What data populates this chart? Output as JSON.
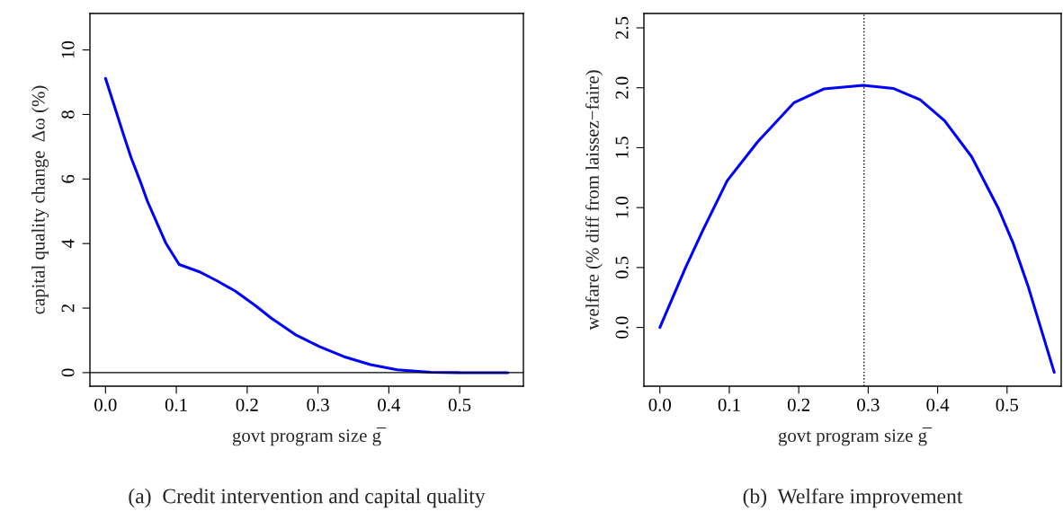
{
  "chart_data": [
    {
      "type": "line",
      "title": "(a)  Credit intervention and capital quality",
      "xlabel": "govt program size g̅",
      "ylabel": "capital quality change  Δω (%)",
      "x": [
        0,
        0.0127,
        0.0255,
        0.036,
        0.049,
        0.059,
        0.072,
        0.085,
        0.104,
        0.132,
        0.157,
        0.183,
        0.212,
        0.234,
        0.268,
        0.302,
        0.336,
        0.374,
        0.412,
        0.459,
        0.501,
        0.568
      ],
      "series": [
        {
          "color": "#0000ff",
          "values": [
            9.12,
            8.25,
            7.37,
            6.67,
            5.93,
            5.32,
            4.67,
            4.02,
            3.35,
            3.13,
            2.85,
            2.53,
            2.07,
            1.69,
            1.18,
            0.81,
            0.5,
            0.25,
            0.09,
            0.01,
            0,
            0
          ]
        }
      ],
      "xlim": [
        -0.022,
        0.59
      ],
      "ylim": [
        -0.42,
        11.13
      ],
      "xticks": [
        {
          "value": 0,
          "label": "0.0"
        },
        0.1,
        0.2,
        0.3,
        0.4,
        0.5
      ],
      "yticks": [
        0,
        2,
        4,
        6,
        8,
        10
      ],
      "ref_lines": [
        {
          "axis": "y",
          "value": 0,
          "color": "#000000",
          "line_style": "solid"
        }
      ],
      "grid": false,
      "legend": false,
      "line_style": "solid"
    },
    {
      "type": "line",
      "title": "(b)  Welfare improvement",
      "xlabel": "govt program size g̅",
      "ylabel": "welfare (% diff from laissez−faire)",
      "x": [
        0,
        0.037,
        0.061,
        0.097,
        0.141,
        0.193,
        0.236,
        0.293,
        0.336,
        0.375,
        0.41,
        0.449,
        0.487,
        0.509,
        0.53,
        0.568
      ],
      "series": [
        {
          "color": "#0000ff",
          "values": [
            0,
            0.5,
            0.8,
            1.225,
            1.55,
            1.875,
            1.99,
            2.02,
            1.995,
            1.9,
            1.725,
            1.425,
            1.0,
            0.7,
            0.35,
            -0.375
          ]
        }
      ],
      "xlim": [
        -0.023,
        0.578
      ],
      "ylim": [
        -0.49,
        2.62
      ],
      "xticks": [
        {
          "value": 0,
          "label": "0.0"
        },
        0.1,
        0.2,
        0.3,
        0.4,
        0.5
      ],
      "yticks": [
        {
          "value": 0,
          "label": "0.0"
        },
        0.5,
        {
          "value": 1,
          "label": "1.0"
        },
        1.5,
        {
          "value": 2,
          "label": "2.0"
        },
        2.5
      ],
      "ref_lines": [
        {
          "axis": "x",
          "value": 0.294,
          "color": "#000000",
          "line_style": "dotted"
        }
      ],
      "grid": false,
      "legend": false,
      "line_style": "solid"
    }
  ]
}
